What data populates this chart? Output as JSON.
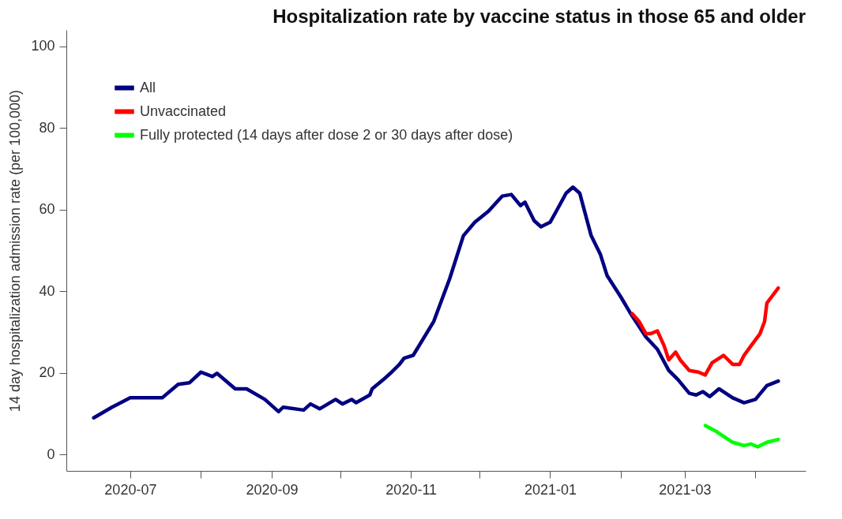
{
  "chart_data": {
    "type": "line",
    "title": "Hospitalization rate by vaccine status in those 65 and older",
    "ylabel": "14 day hospitalization admission rate (per 100,000)",
    "xlim": [
      "2020-06-03",
      "2021-04-23"
    ],
    "ylim": [
      -4,
      104
    ],
    "yticks": [
      0,
      20,
      40,
      60,
      80,
      100
    ],
    "xticks": [
      "2020-07",
      {
        "value": "2020-08",
        "label": null
      },
      "2020-09",
      {
        "value": "2020-10",
        "label": null
      },
      "2020-11",
      {
        "value": "2020-12",
        "label": null
      },
      "2021-01",
      {
        "value": "2021-02",
        "label": null
      },
      "2021-03",
      {
        "value": "2021-04",
        "label": null
      }
    ],
    "grid": false,
    "legend": "top left",
    "line_style": "solid",
    "series": [
      {
        "name": "All",
        "color": "#000080",
        "x": [
          "2020-06-15",
          "2020-06-23",
          "2020-07-01",
          "2020-07-15",
          "2020-07-22",
          "2020-07-27",
          "2020-08-01",
          "2020-08-06",
          "2020-08-08",
          "2020-08-16",
          "2020-08-21",
          "2020-08-29",
          "2020-09-04",
          "2020-09-06",
          "2020-09-15",
          "2020-09-18",
          "2020-09-22",
          "2020-09-29",
          "2020-10-02",
          "2020-10-06",
          "2020-10-08",
          "2020-10-14",
          "2020-10-15",
          "2020-10-20",
          "2020-10-23",
          "2020-10-27",
          "2020-10-29",
          "2020-11-02",
          "2020-11-11",
          "2020-11-18",
          "2020-11-24",
          "2020-11-29",
          "2020-12-05",
          "2020-12-11",
          "2020-12-15",
          "2020-12-19",
          "2020-12-21",
          "2020-12-25",
          "2020-12-28",
          "2021-01-01",
          "2021-01-04",
          "2021-01-08",
          "2021-01-11",
          "2021-01-14",
          "2021-01-19",
          "2021-01-23",
          "2021-01-26",
          "2021-02-01",
          "2021-02-05",
          "2021-02-12",
          "2021-02-17",
          "2021-02-22",
          "2021-02-26",
          "2021-03-03",
          "2021-03-06",
          "2021-03-09",
          "2021-03-12",
          "2021-03-16",
          "2021-03-22",
          "2021-03-27",
          "2021-04-01",
          "2021-04-06",
          "2021-04-11"
        ],
        "values": [
          9.0,
          11.6,
          13.9,
          13.9,
          17.2,
          17.6,
          20.2,
          19.1,
          19.9,
          16.1,
          16.1,
          13.5,
          10.5,
          11.6,
          10.9,
          12.4,
          11.2,
          13.5,
          12.4,
          13.5,
          12.7,
          14.6,
          16.1,
          18.4,
          19.9,
          22.1,
          23.6,
          24.3,
          32.6,
          43.1,
          53.6,
          56.9,
          59.6,
          63.3,
          63.7,
          61.0,
          61.8,
          57.3,
          55.8,
          56.9,
          59.9,
          64.0,
          65.5,
          64.0,
          53.6,
          49.1,
          43.8,
          38.6,
          34.8,
          28.8,
          25.8,
          20.6,
          18.4,
          15.0,
          14.6,
          15.4,
          14.2,
          16.1,
          13.9,
          12.7,
          13.5,
          16.9,
          18.0
        ]
      },
      {
        "name": "Unvaccinated",
        "color": "#ff0000",
        "x": [
          "2021-02-06",
          "2021-02-09",
          "2021-02-12",
          "2021-02-14",
          "2021-02-17",
          "2021-02-20",
          "2021-02-22",
          "2021-02-25",
          "2021-02-27",
          "2021-03-03",
          "2021-03-07",
          "2021-03-10",
          "2021-03-13",
          "2021-03-18",
          "2021-03-22",
          "2021-03-25",
          "2021-03-27",
          "2021-03-30",
          "2021-04-03",
          "2021-04-05",
          "2021-04-06",
          "2021-04-11"
        ],
        "values": [
          34.5,
          32.6,
          29.6,
          29.6,
          30.3,
          26.6,
          23.2,
          25.1,
          23.2,
          20.6,
          20.2,
          19.5,
          22.5,
          24.3,
          22.1,
          22.1,
          24.3,
          26.6,
          29.6,
          32.6,
          37.1,
          40.8
        ]
      },
      {
        "name": "Fully protected (14 days after dose 2 or 30 days after dose)",
        "color": "#00ff00",
        "x": [
          "2021-03-10",
          "2021-03-15",
          "2021-03-19",
          "2021-03-22",
          "2021-03-27",
          "2021-03-30",
          "2021-04-02",
          "2021-04-06",
          "2021-04-11"
        ],
        "values": [
          7.1,
          5.6,
          4.1,
          3.0,
          2.2,
          2.6,
          1.9,
          3.0,
          3.7
        ]
      }
    ]
  }
}
